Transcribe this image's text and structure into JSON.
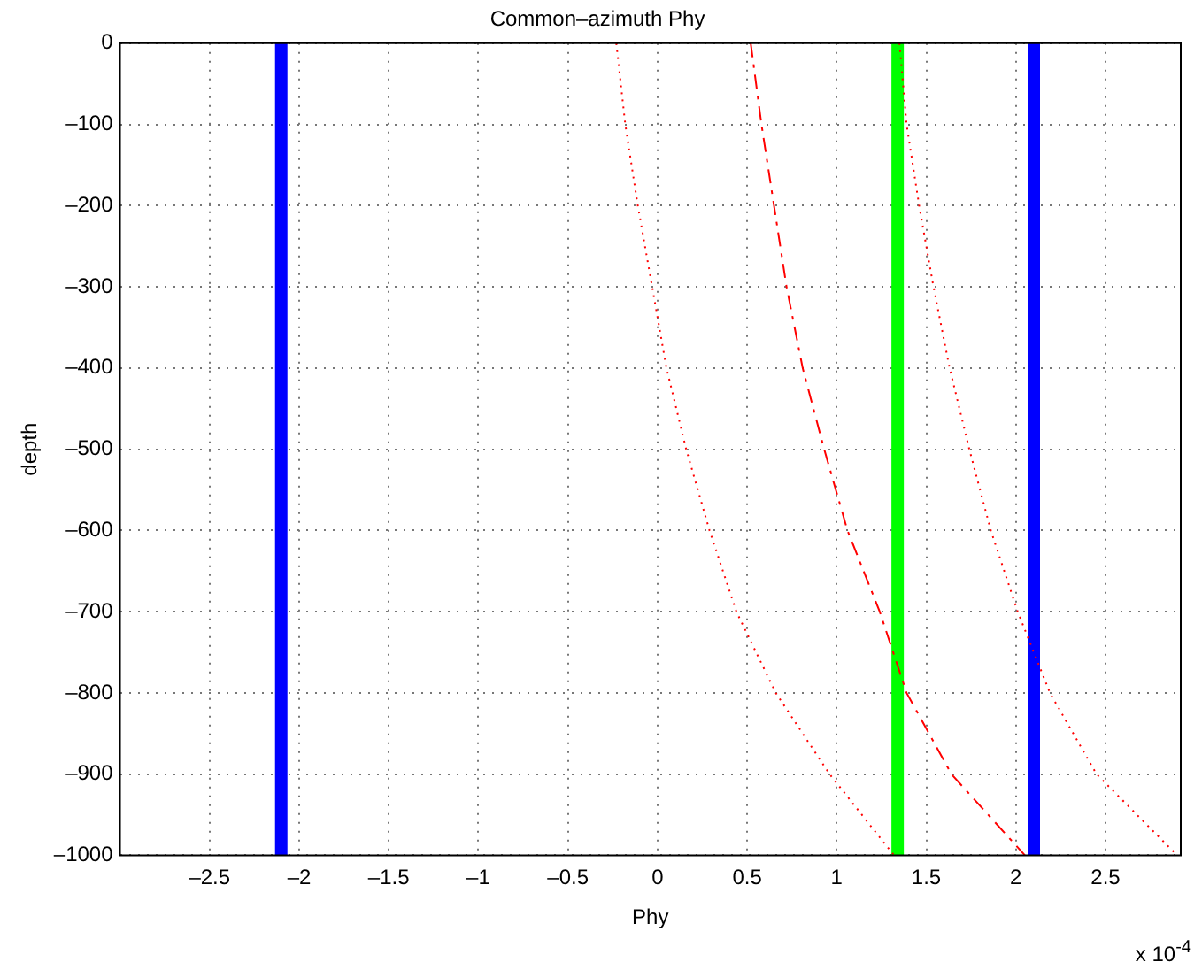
{
  "chart_data": {
    "type": "line",
    "title": "Common–azimuth Phy",
    "xlabel": "Phy",
    "ylabel": "depth",
    "annotations": [
      "x 10$^{-4}$"
    ],
    "xlim": [
      -3,
      2.92
    ],
    "xticks": [
      {
        "value": -2.5,
        "label": "–2.5"
      },
      {
        "value": -2,
        "label": "–2"
      },
      {
        "value": -1.5,
        "label": "–1.5"
      },
      {
        "value": -1,
        "label": "–1"
      },
      {
        "value": -0.5,
        "label": "–0.5"
      },
      0,
      0.5,
      1,
      1.5,
      2,
      2.5
    ],
    "ylim": [
      -1000,
      0
    ],
    "yticks": [
      {
        "value": -1000,
        "label": "–1000"
      },
      {
        "value": -900,
        "label": "–900"
      },
      {
        "value": -800,
        "label": "–800"
      },
      {
        "value": -700,
        "label": "–700"
      },
      {
        "value": -600,
        "label": "–600"
      },
      {
        "value": -500,
        "label": "–500"
      },
      {
        "value": -400,
        "label": "–400"
      },
      {
        "value": -300,
        "label": "–300"
      },
      {
        "value": -200,
        "label": "–200"
      },
      {
        "value": -100,
        "label": "–100"
      },
      0
    ],
    "grid": true,
    "legend": false,
    "series": [
      {
        "color": "#ff0000",
        "line_style": "dotted",
        "x": [
          -0.23,
          -0.18,
          -0.11,
          -0.03,
          0.05,
          0.16,
          0.29,
          0.44,
          0.66,
          0.96,
          1.32
        ],
        "values": [
          0,
          -100,
          -200,
          -300,
          -400,
          -500,
          -600,
          -700,
          -800,
          -900,
          -1000
        ]
      },
      {
        "color": "#ff0000",
        "line_style": "dotted",
        "x": [
          1.35,
          1.39,
          1.46,
          1.54,
          1.63,
          1.74,
          1.86,
          2.01,
          2.19,
          2.45,
          2.9
        ],
        "values": [
          0,
          -100,
          -200,
          -300,
          -400,
          -500,
          -600,
          -700,
          -800,
          -900,
          -1000
        ]
      },
      {
        "color": "#ff0000",
        "line_style": "dashed",
        "x": [
          0.52,
          0.58,
          0.65,
          0.72,
          0.81,
          0.93,
          1.06,
          1.24,
          1.39,
          1.64,
          2.05
        ],
        "values": [
          0,
          -100,
          -200,
          -300,
          -400,
          -500,
          -600,
          -700,
          -800,
          -900,
          -1000
        ]
      },
      {
        "color": "#0000ff",
        "line_style": "solid",
        "x": [
          -2.1,
          -2.1
        ],
        "values": [
          0,
          -1000
        ]
      },
      {
        "color": "#0000ff",
        "line_style": "solid",
        "x": [
          2.1,
          2.1
        ],
        "values": [
          0,
          -1000
        ]
      },
      {
        "color": "#00ff00",
        "line_style": "solid",
        "x": [
          1.34,
          1.34
        ],
        "values": [
          0,
          -1000
        ]
      }
    ]
  }
}
